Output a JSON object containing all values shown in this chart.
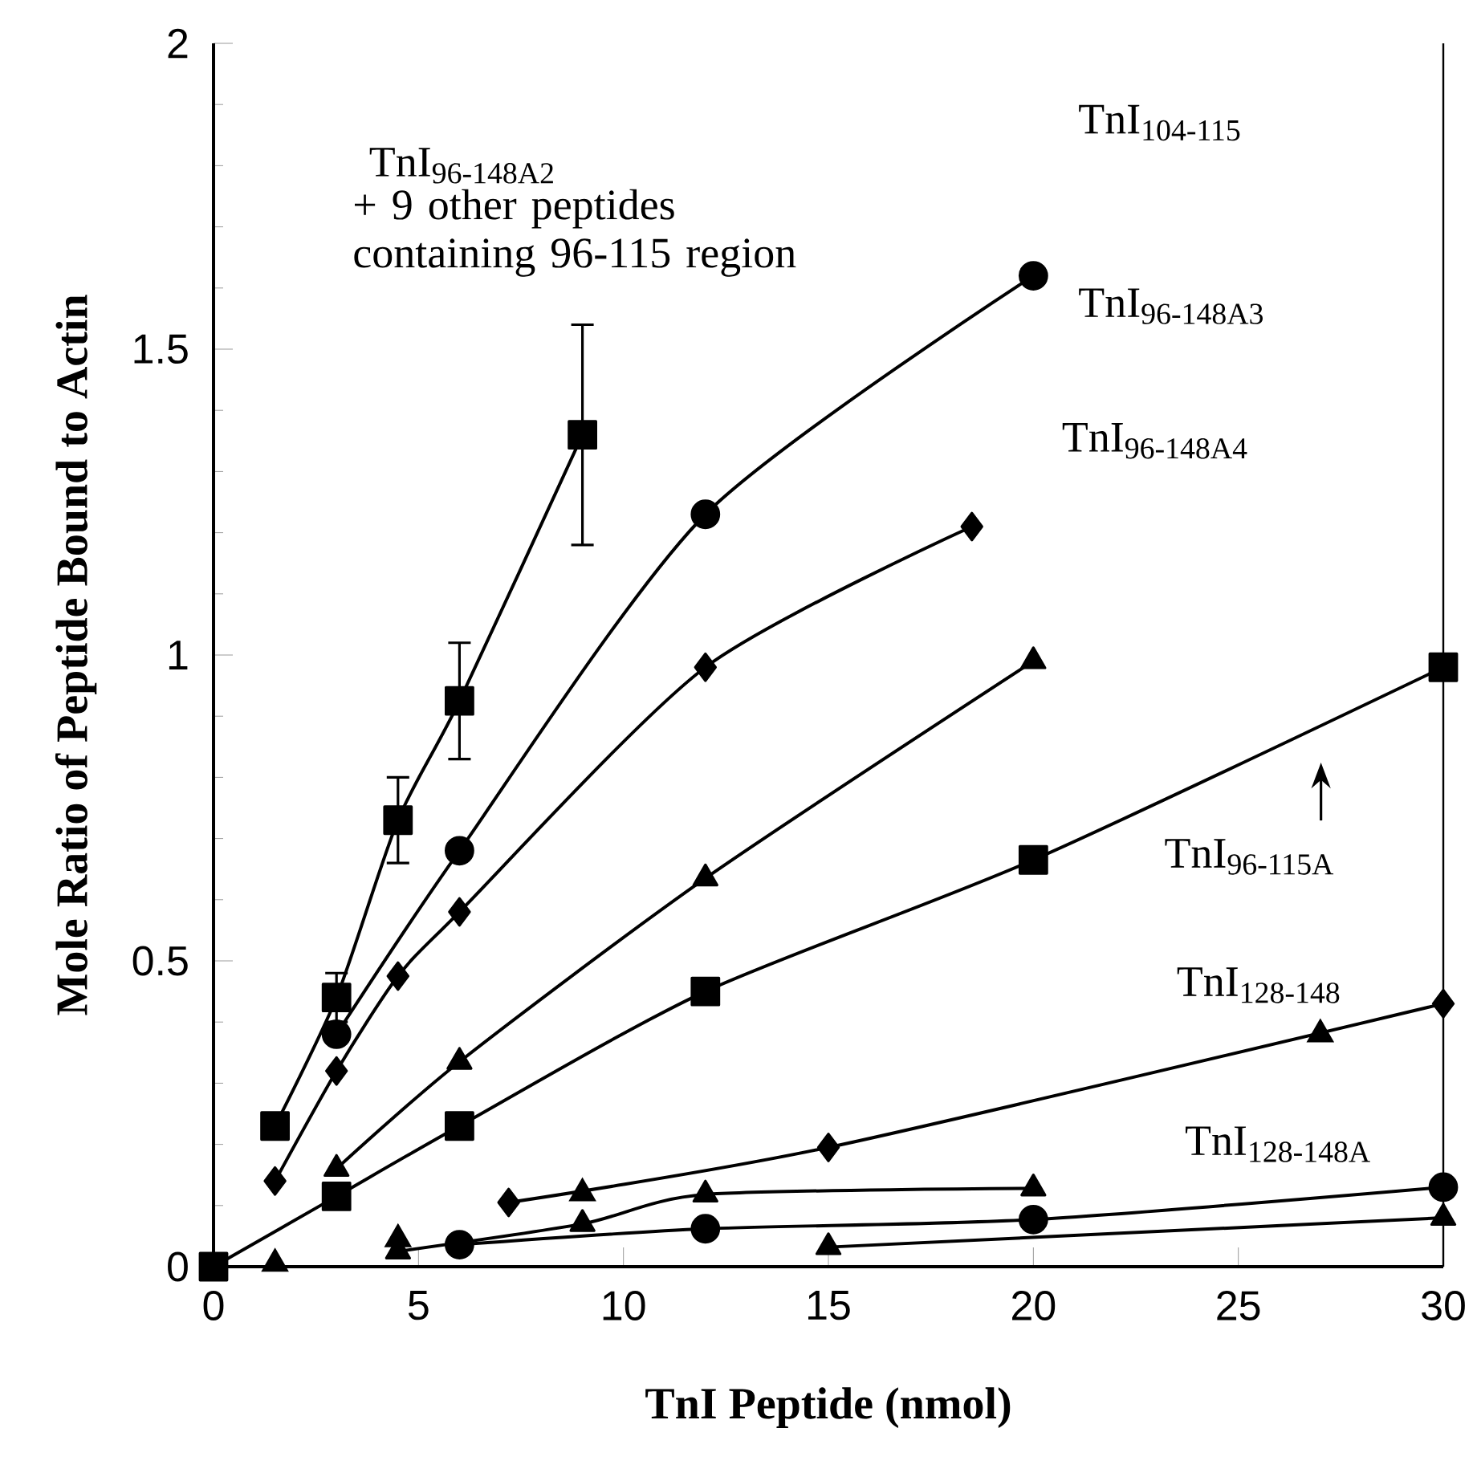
{
  "chart_data": {
    "type": "line",
    "xlabel": "TnI Peptide (nmol)",
    "ylabel": "Mole Ratio of Peptide Bound to Actin",
    "xlim": [
      0,
      30
    ],
    "ylim": [
      0,
      2
    ],
    "xticks": [
      0,
      5,
      10,
      15,
      20,
      25,
      30
    ],
    "yticks": [
      0,
      0.5,
      1,
      1.5,
      2
    ],
    "line_style": "solid",
    "series": [
      {
        "color": "#000000",
        "marker": "square",
        "x": [
          1.5,
          3,
          4.5,
          6,
          9
        ],
        "values": [
          0.23,
          0.44,
          0.73,
          0.925,
          1.36
        ],
        "errors": [
          null,
          0.04,
          0.07,
          0.095,
          0.18
        ]
      },
      {
        "color": "#000000",
        "marker": "circle",
        "x": [
          3,
          6,
          12,
          20
        ],
        "values": [
          0.38,
          0.68,
          1.23,
          1.62
        ]
      },
      {
        "color": "#000000",
        "marker": "diamond",
        "x": [
          1.5,
          3,
          4.5,
          6,
          12,
          18.5
        ],
        "values": [
          0.14,
          0.32,
          0.475,
          0.58,
          0.98,
          1.21
        ]
      },
      {
        "color": "#000000",
        "marker": "triangle",
        "x": [
          3,
          6,
          12,
          20
        ],
        "values": [
          0.16,
          0.335,
          0.635,
          0.99
        ]
      },
      {
        "color": "#000000",
        "marker": "square",
        "x": [
          0,
          3,
          6,
          12,
          20,
          30
        ],
        "values": [
          0,
          0.115,
          0.23,
          0.45,
          0.665,
          0.98
        ]
      },
      {
        "color": "#000000",
        "marker": "diamond",
        "x": [
          7.2,
          15,
          30
        ],
        "values": [
          0.105,
          0.195,
          0.43
        ]
      },
      {
        "type": "scatter",
        "color": "#000000",
        "marker": "triangle",
        "x": [
          1.5,
          4.5,
          9,
          27
        ],
        "values": [
          0.005,
          0.045,
          0.12,
          0.38
        ]
      },
      {
        "color": "#000000",
        "marker": "triangle",
        "x": [
          4.5,
          9,
          12,
          20
        ],
        "values": [
          0.025,
          0.07,
          0.118,
          0.128
        ]
      },
      {
        "color": "#000000",
        "marker": "circle",
        "x": [
          6,
          12,
          20,
          30
        ],
        "values": [
          0.036,
          0.062,
          0.077,
          0.13
        ]
      },
      {
        "color": "#000000",
        "marker": "triangle",
        "x": [
          15,
          30
        ],
        "values": [
          0.032,
          0.08
        ]
      }
    ],
    "annotations": [
      "TnI$_{96-148A2}$",
      "+ 9 other peptides containing 96-115 region",
      "TnI$_{104-115}$",
      "TnI$_{96-115A}$",
      "TnI$_{96-148A3}$",
      "TnI$_{96-148A4}$",
      "TnI$_{128-148}$",
      "TnI$_{128-148A}$"
    ]
  }
}
